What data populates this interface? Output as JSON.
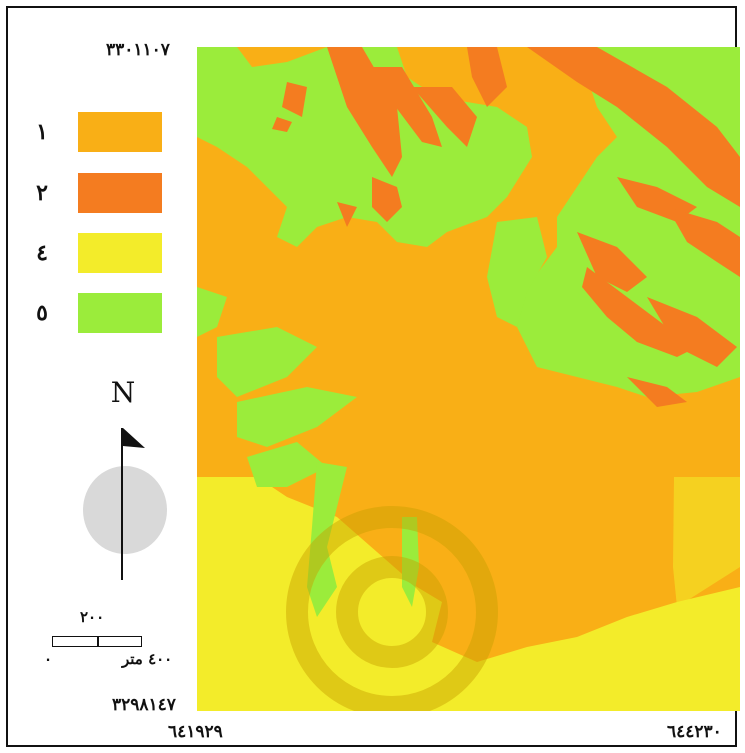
{
  "map": {
    "coords": {
      "top_left_y": "۳۳۰۱۱۰۷",
      "bottom_left_y": "۳۲۹۸۱٤۷",
      "bottom_left_x": "٦٤١٩٢٩",
      "bottom_right_x": "٦٤٤٢٣٠"
    },
    "legend": [
      {
        "label": "١",
        "color": "#F9AF16"
      },
      {
        "label": "۲",
        "color": "#F47C20"
      },
      {
        "label": "٤",
        "color": "#F3EC2A"
      },
      {
        "label": "٥",
        "color": "#9BEC3B"
      }
    ],
    "north_arrow": {
      "letter": "N",
      "icon": "north-arrow-icon"
    },
    "scale": {
      "mid_label": "۲۰۰",
      "end_label": "٤۰۰ متر",
      "zero_label": "۰"
    },
    "colors": {
      "class1": "#F9AF16",
      "class2": "#F47C20",
      "class4": "#F3EC2A",
      "class5": "#9BEC3B",
      "watermark": "#C8A000"
    }
  }
}
